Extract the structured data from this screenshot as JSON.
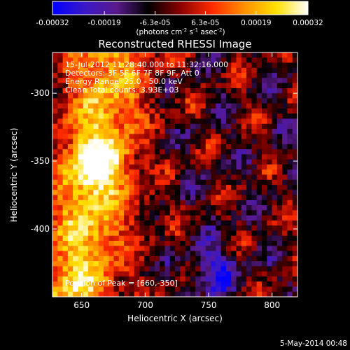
{
  "colorbar": {
    "colors": [
      "#0000ff",
      "#3a18c8",
      "#5a1a8c",
      "#000000",
      "#8a0000",
      "#ff2a00",
      "#ff9000",
      "#ffe000",
      "#ffffff"
    ],
    "ticks": [
      "-0.00032",
      "-0.00019",
      "-6.3e-05",
      "6.3e-05",
      "0.00019",
      "0.00032"
    ],
    "units_prefix": "(photons cm",
    "units_exp1": "-2",
    "units_mid": " s",
    "units_exp2": "-1",
    "units_suffix": " asec",
    "units_exp3": "-2",
    "units_end": ")"
  },
  "title": "Reconstructed RHESSI Image",
  "info": {
    "line1": "15-Jul-2012 11:28:40.000 to 11:32:16.000",
    "line2": "Detectors: 3F 5F 6F 7F 8F 9F, Att 0",
    "line3": "Energy Range: 25.0 - 50.0 keV",
    "line4": "Clean     Total counts: 3.93E+03",
    "peak": "Position of Peak = [660,-350]"
  },
  "footer": {
    "date": "5-May-2014 00:48"
  },
  "chart_data": {
    "type": "heatmap",
    "title": "Reconstructed RHESSI Image",
    "xlabel": "Heliocentric X (arcsec)",
    "ylabel": "Heliocentric Y (arcsec)",
    "xlim": [
      627,
      820
    ],
    "ylim": [
      -450,
      -270
    ],
    "x_ticks": [
      "650",
      "700",
      "750",
      "800"
    ],
    "x_tick_values": [
      650,
      700,
      750,
      800
    ],
    "y_ticks": [
      "-300",
      "-350",
      "-400"
    ],
    "y_tick_values": [
      -300,
      -350,
      -400
    ],
    "color_range": [
      -0.00032,
      0.00032
    ],
    "peak_position": [
      660,
      -350
    ],
    "grid_cells": [
      48,
      48
    ]
  }
}
